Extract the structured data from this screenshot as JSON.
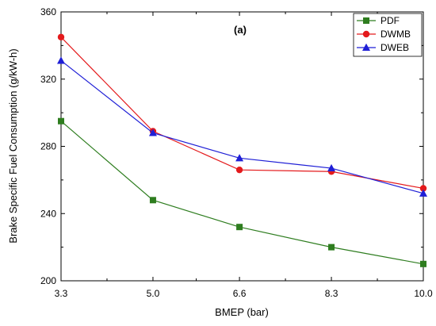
{
  "chart_data": {
    "type": "line",
    "panel_label": "(a)",
    "xlabel": "BMEP (bar)",
    "ylabel": "Brake Specific Fuel Consumption (g/kW-h)",
    "x": [
      3.3,
      5.0,
      6.6,
      8.3,
      10.0
    ],
    "x_tick_labels": [
      "3.3",
      "5.0",
      "6.6",
      "8.3",
      "10.0"
    ],
    "xlim": [
      3.3,
      10.0
    ],
    "ylim": [
      200,
      360
    ],
    "y_ticks": [
      200,
      240,
      280,
      320,
      360
    ],
    "y_tick_labels": [
      "200",
      "240",
      "280",
      "320",
      "360"
    ],
    "grid": false,
    "legend_position": "top-right",
    "series": [
      {
        "name": "PDF",
        "values": [
          295,
          248,
          232,
          220,
          210
        ],
        "color": "#2e7d1f",
        "marker": "square"
      },
      {
        "name": "DWMB",
        "values": [
          345,
          289,
          266,
          265,
          255
        ],
        "color": "#e41a1c",
        "marker": "circle"
      },
      {
        "name": "DWEB",
        "values": [
          331,
          288,
          273,
          267,
          252
        ],
        "color": "#1f1fd6",
        "marker": "triangle"
      }
    ]
  }
}
